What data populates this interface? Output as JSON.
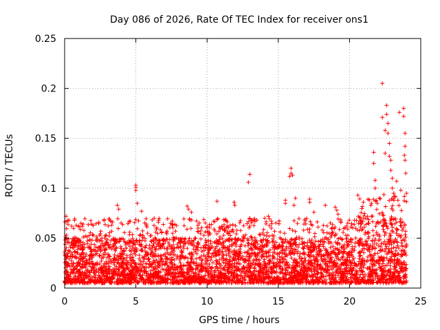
{
  "chart_data": {
    "type": "scatter",
    "title": "Day 086 of 2026, Rate Of TEC Index for receiver ons1",
    "xlabel": "GPS time / hours",
    "ylabel": "ROTI / TECUs",
    "xlim": [
      0,
      25
    ],
    "ylim": [
      0,
      0.25
    ],
    "grid": true,
    "marker": "+",
    "color": "#ff0000",
    "x_ticks": [
      0,
      5,
      10,
      15,
      20,
      25
    ],
    "x_tick_labels": [
      "0",
      "5",
      "10",
      "15",
      "20",
      "25"
    ],
    "y_ticks": [
      0,
      0.05,
      0.1,
      0.15,
      0.2,
      0.25
    ],
    "y_tick_labels": [
      "0",
      "0.05",
      "0.1",
      "0.15",
      "0.2",
      "0.25"
    ],
    "series": [
      {
        "name": "ROTI",
        "x_range": [
          0,
          24
        ],
        "baseline_band": [
          0.005,
          0.05
        ],
        "typical_peak": 0.07,
        "outliers": [
          {
            "x": 0.1,
            "y": 0.072
          },
          {
            "x": 0.3,
            "y": 0.068
          },
          {
            "x": 1.0,
            "y": 0.062
          },
          {
            "x": 2.4,
            "y": 0.066
          },
          {
            "x": 3.3,
            "y": 0.063
          },
          {
            "x": 3.7,
            "y": 0.083
          },
          {
            "x": 3.8,
            "y": 0.079
          },
          {
            "x": 4.6,
            "y": 0.067
          },
          {
            "x": 5.0,
            "y": 0.103
          },
          {
            "x": 5.0,
            "y": 0.101
          },
          {
            "x": 5.0,
            "y": 0.098
          },
          {
            "x": 5.1,
            "y": 0.085
          },
          {
            "x": 5.4,
            "y": 0.077
          },
          {
            "x": 6.6,
            "y": 0.068
          },
          {
            "x": 8.6,
            "y": 0.082
          },
          {
            "x": 8.7,
            "y": 0.079
          },
          {
            "x": 8.9,
            "y": 0.076
          },
          {
            "x": 10.7,
            "y": 0.087
          },
          {
            "x": 11.3,
            "y": 0.068
          },
          {
            "x": 11.9,
            "y": 0.086
          },
          {
            "x": 11.95,
            "y": 0.083
          },
          {
            "x": 13.0,
            "y": 0.114
          },
          {
            "x": 12.9,
            "y": 0.106
          },
          {
            "x": 13.0,
            "y": 0.07
          },
          {
            "x": 13.5,
            "y": 0.068
          },
          {
            "x": 14.3,
            "y": 0.072
          },
          {
            "x": 15.5,
            "y": 0.088
          },
          {
            "x": 15.5,
            "y": 0.085
          },
          {
            "x": 15.9,
            "y": 0.12
          },
          {
            "x": 15.9,
            "y": 0.115
          },
          {
            "x": 15.8,
            "y": 0.112
          },
          {
            "x": 16.0,
            "y": 0.113
          },
          {
            "x": 16.2,
            "y": 0.09
          },
          {
            "x": 16.1,
            "y": 0.083
          },
          {
            "x": 17.2,
            "y": 0.089
          },
          {
            "x": 17.2,
            "y": 0.086
          },
          {
            "x": 17.5,
            "y": 0.076
          },
          {
            "x": 18.3,
            "y": 0.083
          },
          {
            "x": 19.0,
            "y": 0.081
          },
          {
            "x": 19.1,
            "y": 0.078
          },
          {
            "x": 19.2,
            "y": 0.074
          },
          {
            "x": 20.1,
            "y": 0.061
          },
          {
            "x": 21.0,
            "y": 0.07
          },
          {
            "x": 21.3,
            "y": 0.089
          },
          {
            "x": 21.5,
            "y": 0.083
          },
          {
            "x": 21.7,
            "y": 0.136
          },
          {
            "x": 21.7,
            "y": 0.125
          },
          {
            "x": 21.8,
            "y": 0.108
          },
          {
            "x": 21.8,
            "y": 0.1
          },
          {
            "x": 22.1,
            "y": 0.09
          },
          {
            "x": 22.3,
            "y": 0.205
          },
          {
            "x": 22.3,
            "y": 0.171
          },
          {
            "x": 22.5,
            "y": 0.158
          },
          {
            "x": 22.5,
            "y": 0.135
          },
          {
            "x": 22.6,
            "y": 0.183
          },
          {
            "x": 22.6,
            "y": 0.174
          },
          {
            "x": 22.7,
            "y": 0.165
          },
          {
            "x": 22.7,
            "y": 0.155
          },
          {
            "x": 22.8,
            "y": 0.145
          },
          {
            "x": 22.8,
            "y": 0.132
          },
          {
            "x": 22.9,
            "y": 0.128
          },
          {
            "x": 22.9,
            "y": 0.118
          },
          {
            "x": 23.0,
            "y": 0.11
          },
          {
            "x": 23.0,
            "y": 0.1
          },
          {
            "x": 23.1,
            "y": 0.095
          },
          {
            "x": 23.2,
            "y": 0.092
          },
          {
            "x": 23.3,
            "y": 0.107
          },
          {
            "x": 23.4,
            "y": 0.088
          },
          {
            "x": 23.5,
            "y": 0.176
          },
          {
            "x": 23.6,
            "y": 0.098
          },
          {
            "x": 23.8,
            "y": 0.18
          },
          {
            "x": 23.8,
            "y": 0.172
          },
          {
            "x": 23.9,
            "y": 0.155
          },
          {
            "x": 23.9,
            "y": 0.142
          },
          {
            "x": 23.85,
            "y": 0.133
          },
          {
            "x": 23.9,
            "y": 0.128
          },
          {
            "x": 23.95,
            "y": 0.115
          },
          {
            "x": 24.0,
            "y": 0.095
          }
        ]
      }
    ]
  }
}
